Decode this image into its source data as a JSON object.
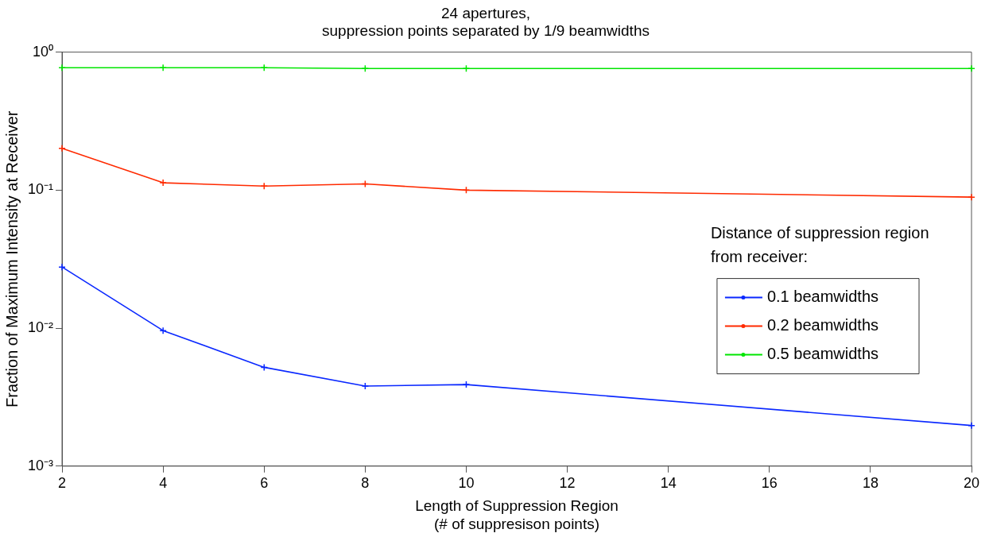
{
  "chart_data": {
    "type": "line",
    "title": "24 apertures,\nsuppression points separated by 1/9 beamwidths",
    "xlabel": "Length of Suppression Region\n(# of suppresison points)",
    "ylabel": "Fraction of Maximum Intensity at Receiver",
    "legend_title": "Distance of suppression region from receiver:",
    "x": [
      2,
      4,
      6,
      8,
      10,
      20
    ],
    "series": [
      {
        "name": "0.1 beamwidths",
        "color": "#0a28ff",
        "values": [
          0.0277,
          0.0096,
          0.0052,
          0.0038,
          0.0039,
          0.00197
        ]
      },
      {
        "name": "0.2 beamwidths",
        "color": "#ff2a00",
        "values": [
          0.201,
          0.113,
          0.107,
          0.111,
          0.1,
          0.089
        ]
      },
      {
        "name": "0.5 beamwidths",
        "color": "#00e600",
        "values": [
          0.77,
          0.77,
          0.77,
          0.76,
          0.76,
          0.76
        ]
      }
    ],
    "xlim": [
      2,
      20
    ],
    "xticks": [
      2,
      4,
      6,
      8,
      10,
      12,
      14,
      16,
      18,
      20
    ],
    "ylim": [
      0.001,
      1
    ],
    "yticks": [
      {
        "value": 0.001,
        "label": "10⁻³"
      },
      {
        "value": 0.01,
        "label": "10⁻²"
      },
      {
        "value": 0.1,
        "label": "10⁻¹"
      },
      {
        "value": 1,
        "label": "10⁰"
      }
    ],
    "log": "y",
    "grid": false,
    "legend": "right",
    "marker": "cross",
    "line_style": "solid"
  }
}
